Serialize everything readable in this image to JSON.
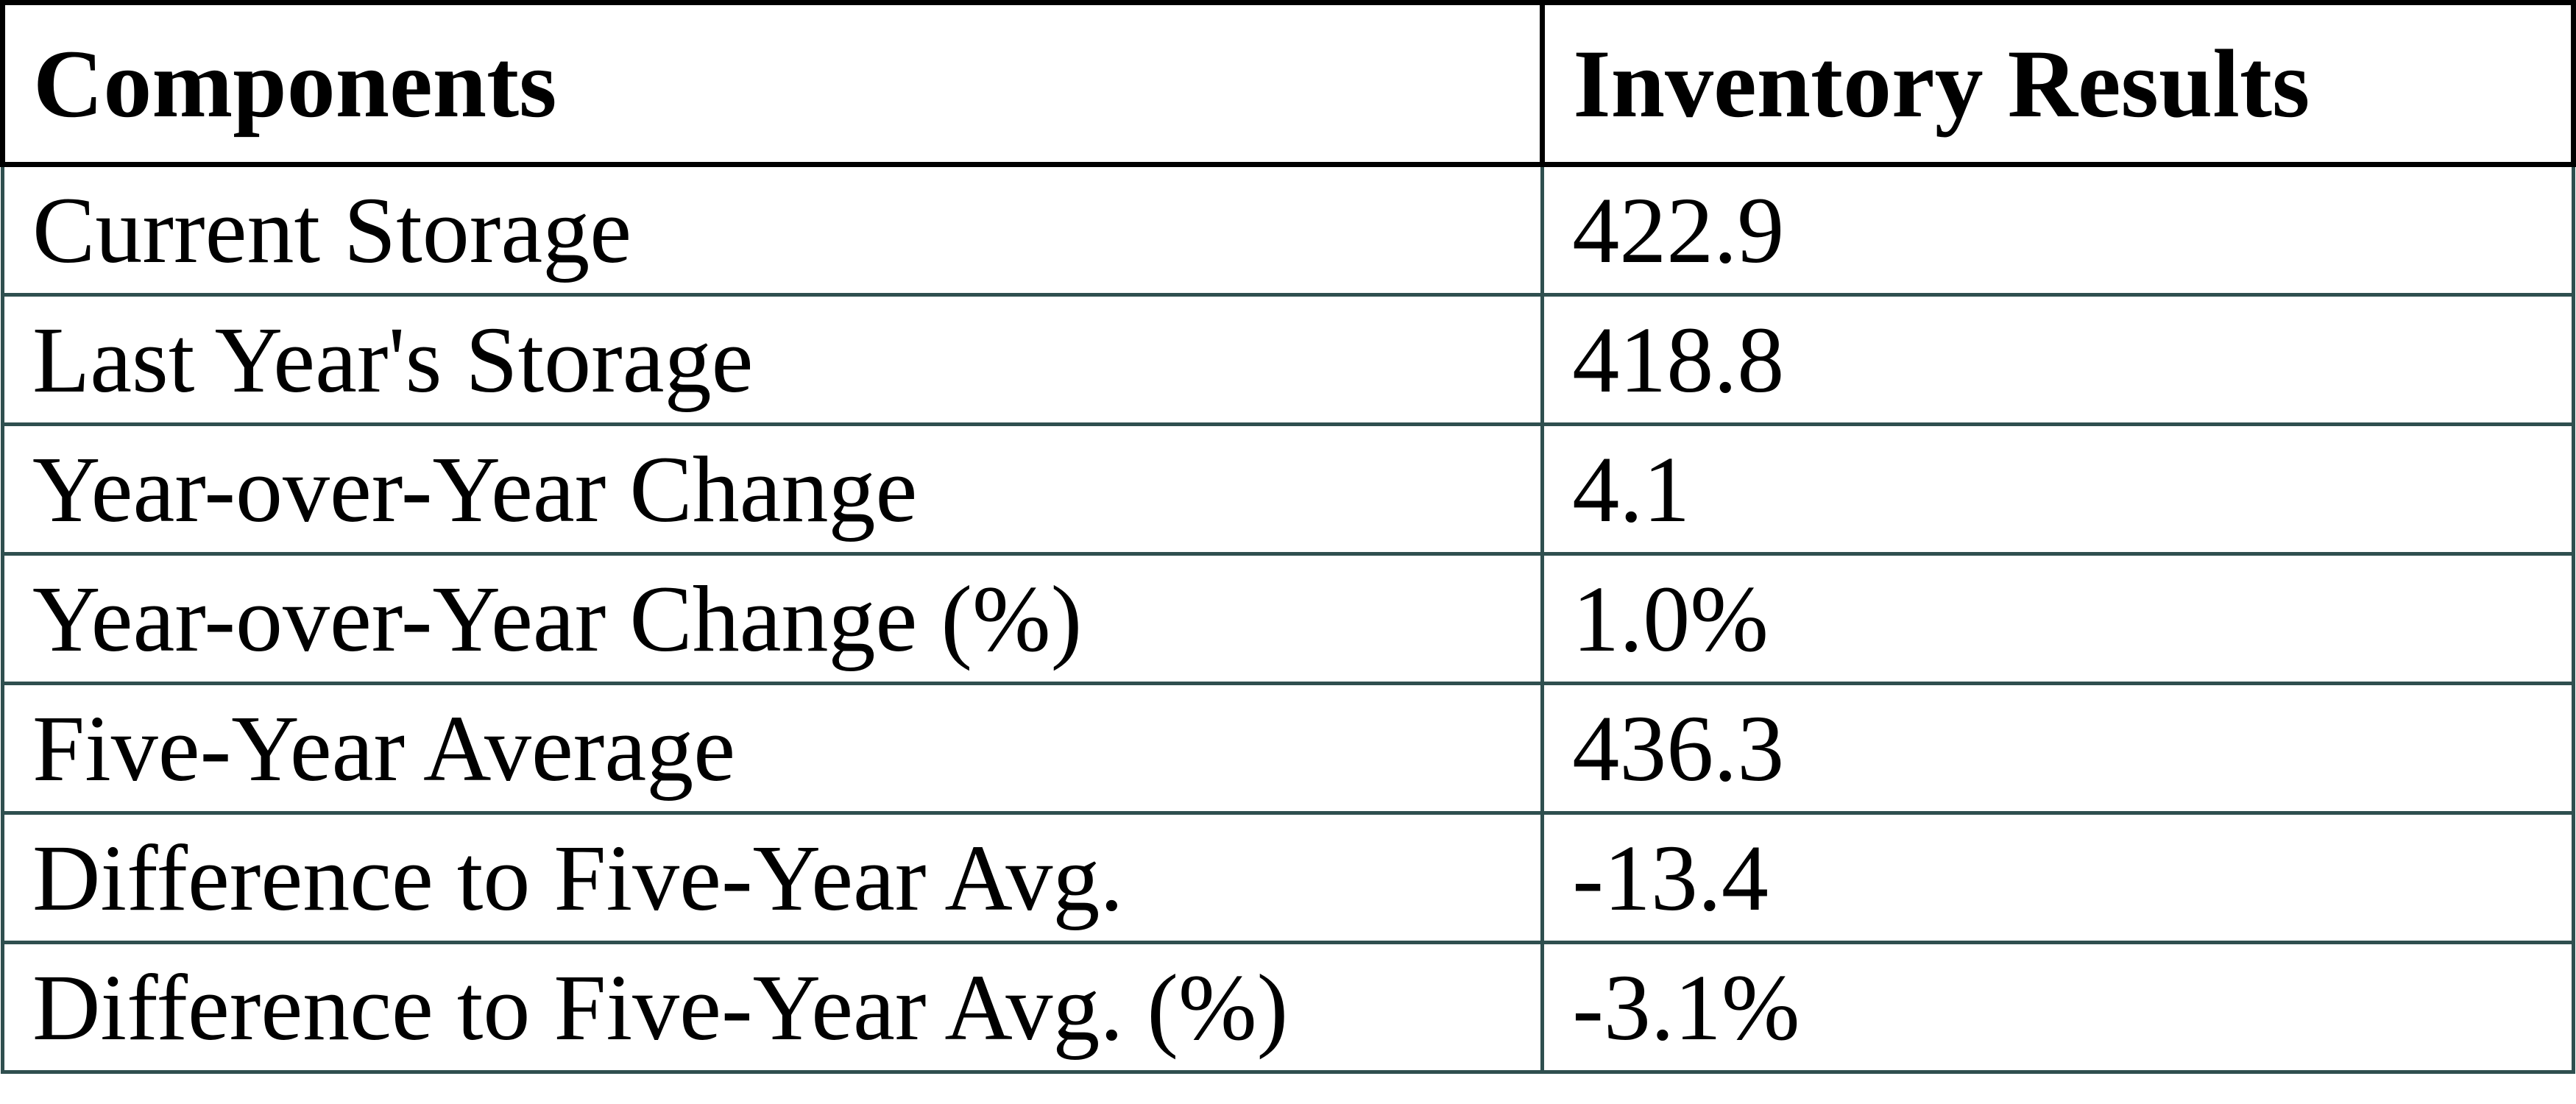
{
  "page": {
    "background": "#ffffff"
  },
  "table": {
    "header": {
      "components": "Components",
      "results": "Inventory Results"
    },
    "rows": [
      {
        "component": "Current Storage",
        "result": "422.9"
      },
      {
        "component": "Last Year's Storage",
        "result": "418.8"
      },
      {
        "component": "Year-over-Year Change",
        "result": "4.1"
      },
      {
        "component": "Year-over-Year Change (%)",
        "result": "1.0%"
      },
      {
        "component": "Five-Year Average",
        "result": "436.3"
      },
      {
        "component": "Difference to Five-Year Avg.",
        "result": "-13.4"
      },
      {
        "component": "Difference to Five-Year Avg. (%)",
        "result": "-3.1%"
      }
    ],
    "colors": {
      "header_border": "#000000",
      "body_border": "#2f4f4f",
      "text": "#000000",
      "background": "#ffffff"
    }
  },
  "chart_data": {
    "type": "table",
    "title": "",
    "columns": [
      "Components",
      "Inventory Results"
    ],
    "rows": [
      [
        "Current Storage",
        "422.9"
      ],
      [
        "Last Year's Storage",
        "418.8"
      ],
      [
        "Year-over-Year Change",
        "4.1"
      ],
      [
        "Year-over-Year Change (%)",
        "1.0%"
      ],
      [
        "Five-Year Average",
        "436.3"
      ],
      [
        "Difference to Five-Year Avg.",
        "-13.4"
      ],
      [
        "Difference to Five-Year Avg. (%)",
        "-3.1%"
      ]
    ],
    "values": {
      "current_storage": 422.9,
      "last_year_storage": 418.8,
      "year_over_year_change": 4.1,
      "year_over_year_change_pct": 1.0,
      "five_year_average": 436.3,
      "difference_to_five_year_avg": -13.4,
      "difference_to_five_year_avg_pct": -3.1
    }
  }
}
